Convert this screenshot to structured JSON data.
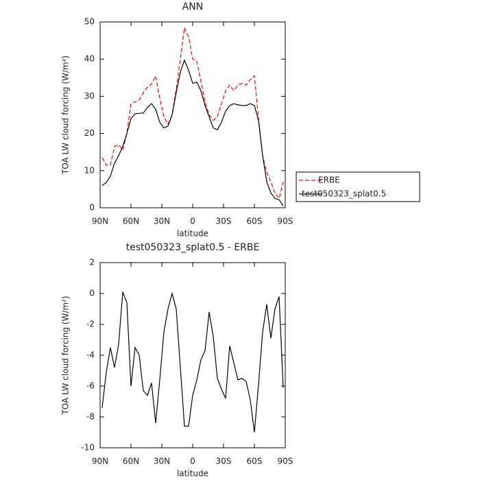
{
  "chart_data": [
    {
      "type": "line",
      "title": "ANN",
      "xlabel": "latitude",
      "ylabel": "TOA LW cloud forcing (W/m²)",
      "x": [
        88,
        84,
        80,
        76,
        72,
        68,
        64,
        60,
        56,
        52,
        48,
        44,
        40,
        36,
        32,
        28,
        24,
        20,
        16,
        12,
        8,
        4,
        0,
        -4,
        -8,
        -12,
        -16,
        -20,
        -24,
        -28,
        -32,
        -36,
        -40,
        -44,
        -48,
        -52,
        -56,
        -60,
        -64,
        -68,
        -72,
        -76,
        -80,
        -84,
        -88
      ],
      "xlim": [
        90,
        -90
      ],
      "xticks": [
        {
          "value": 90,
          "label": "90N"
        },
        {
          "value": 60,
          "label": "60N"
        },
        {
          "value": 30,
          "label": "30N"
        },
        0,
        {
          "value": -30,
          "label": "30S"
        },
        {
          "value": -60,
          "label": "60S"
        },
        {
          "value": -90,
          "label": "90S"
        }
      ],
      "ylim": [
        0,
        50
      ],
      "yticks": [
        0,
        10,
        20,
        30,
        40,
        50
      ],
      "legend": "right",
      "series": [
        {
          "name": "ERBE",
          "color": "#ff0000",
          "dash": true,
          "values": [
            13.5,
            11.5,
            11.5,
            16.5,
            17,
            15.5,
            20,
            28,
            28.5,
            29,
            31,
            32.5,
            33.3,
            35.5,
            29.5,
            24.5,
            22.5,
            25,
            32,
            40,
            48.5,
            46,
            40,
            39.5,
            34,
            28.5,
            25,
            23.5,
            24.5,
            28,
            31.5,
            33,
            31.5,
            33,
            33.5,
            33,
            34.5,
            35.5,
            24,
            14,
            9.5,
            7,
            4,
            2.5,
            7
          ]
        },
        {
          "name": "test050323_splat0.5",
          "color": "#000000",
          "dash": false,
          "values": [
            6,
            6.8,
            8.5,
            12,
            14,
            16.5,
            20,
            24,
            25.3,
            25.4,
            25.5,
            27,
            28,
            26.5,
            23,
            21.5,
            22,
            25,
            31,
            36.5,
            39.7,
            37,
            33.5,
            33.8,
            31.5,
            27.5,
            24.5,
            21.5,
            21,
            23,
            26,
            27.5,
            28,
            27.7,
            27.5,
            27.5,
            28,
            27.5,
            23.5,
            14,
            7,
            4,
            2.5,
            2.2,
            0.5
          ]
        }
      ]
    },
    {
      "type": "line",
      "title": "test050323_splat0.5 - ERBE",
      "xlabel": "latitude",
      "ylabel": "TOA LW cloud forcing (W/m²)",
      "x": [
        88,
        84,
        80,
        76,
        72,
        68,
        64,
        60,
        56,
        52,
        48,
        44,
        40,
        36,
        32,
        28,
        24,
        20,
        16,
        12,
        8,
        4,
        0,
        -4,
        -8,
        -12,
        -16,
        -20,
        -24,
        -28,
        -32,
        -36,
        -40,
        -44,
        -48,
        -52,
        -56,
        -60,
        -64,
        -68,
        -72,
        -76,
        -80,
        -84,
        -88
      ],
      "xlim": [
        90,
        -90
      ],
      "xticks": [
        {
          "value": 90,
          "label": "90N"
        },
        {
          "value": 60,
          "label": "60N"
        },
        {
          "value": 30,
          "label": "30N"
        },
        0,
        {
          "value": -30,
          "label": "30S"
        },
        {
          "value": -60,
          "label": "60S"
        },
        {
          "value": -90,
          "label": "90S"
        }
      ],
      "ylim": [
        -10,
        2
      ],
      "yticks": [
        -10,
        -8,
        -6,
        -4,
        -2,
        0,
        2
      ],
      "series": [
        {
          "color": "#000000",
          "dash": false,
          "values": [
            -7.4,
            -5.1,
            -3.5,
            -4.8,
            -3.3,
            0.1,
            -0.6,
            -6,
            -3.5,
            -4,
            -6.3,
            -6.6,
            -5.8,
            -8.4,
            -5.6,
            -2.5,
            -1,
            0,
            -1,
            -4.8,
            -8.6,
            -8.6,
            -6.6,
            -5.6,
            -4.3,
            -3.7,
            -1.2,
            -2.8,
            -5.5,
            -6.2,
            -6.8,
            -3.4,
            -4.5,
            -5.6,
            -5.5,
            -5.7,
            -6.9,
            -9,
            -5.9,
            -2.5,
            -0.7,
            -2.9,
            -1,
            -0.2,
            -6.1
          ]
        }
      ]
    }
  ]
}
